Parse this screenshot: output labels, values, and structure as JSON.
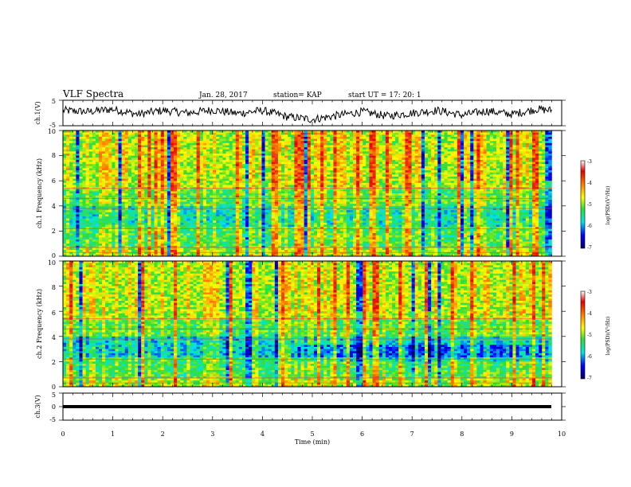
{
  "header": {
    "title": "VLF Spectra",
    "date": "Jan. 28, 2017",
    "station": "station= KAP",
    "start_time": "start  UT =   17: 20: 1"
  },
  "chart_data": [
    {
      "type": "line",
      "panel": "ch1-waveform",
      "ylabel": "ch.1(V)",
      "ylim": [
        -5,
        5
      ],
      "yticks": [
        "5",
        "-5"
      ],
      "xlim": [
        0,
        10
      ],
      "x": [
        0.0,
        0.5,
        1.0,
        1.5,
        2.0,
        2.5,
        3.0,
        3.5,
        4.0,
        4.5,
        5.0,
        5.5,
        6.0,
        6.5,
        7.0,
        7.5,
        8.0,
        8.5,
        9.0,
        9.5,
        9.8
      ],
      "y": [
        1.0,
        0.5,
        1.5,
        -0.5,
        1.0,
        0.0,
        1.2,
        -0.2,
        1.0,
        -1.5,
        -2.5,
        -1.0,
        0.5,
        -1.2,
        0.0,
        1.0,
        -0.8,
        0.8,
        -0.5,
        1.5,
        1.0
      ]
    },
    {
      "type": "heatmap",
      "panel": "ch1-spectrogram",
      "ylabel": "ch.1 Frequency (kHz)",
      "ylim": [
        0,
        10
      ],
      "yticks": [
        "0",
        "2",
        "4",
        "6",
        "8",
        "10"
      ],
      "xlim": [
        0,
        10
      ],
      "colorbar": {
        "label": "log(PSD)(V²/Hz)",
        "range": [
          -7,
          -3
        ],
        "ticks": [
          "-3",
          "-4",
          "-5",
          "-6",
          "-7"
        ]
      }
    },
    {
      "type": "heatmap",
      "panel": "ch2-spectrogram",
      "ylabel": "ch.2 Frequency (kHz)",
      "ylim": [
        0,
        10
      ],
      "yticks": [
        "0",
        "2",
        "4",
        "6",
        "8",
        "10"
      ],
      "xlim": [
        0,
        10
      ],
      "colorbar": {
        "label": "log(PSD)(V²/Hz)",
        "range": [
          -7,
          -3
        ],
        "ticks": [
          "-3",
          "-4",
          "-5",
          "-6",
          "-7"
        ]
      }
    },
    {
      "type": "line",
      "panel": "ch3-waveform",
      "ylabel": "ch.3(V)",
      "ylim": [
        -5,
        5
      ],
      "yticks": [
        "5",
        "0",
        "-5"
      ],
      "xlim": [
        0,
        10
      ],
      "x": [
        0,
        9.8
      ],
      "y": [
        0,
        0
      ]
    }
  ],
  "xaxis": {
    "label": "Time (min)",
    "ticks": [
      "0",
      "1",
      "2",
      "3",
      "4",
      "5",
      "6",
      "7",
      "8",
      "9",
      "10"
    ]
  },
  "colors": {
    "axis": "#000000",
    "background": "#ffffff"
  }
}
